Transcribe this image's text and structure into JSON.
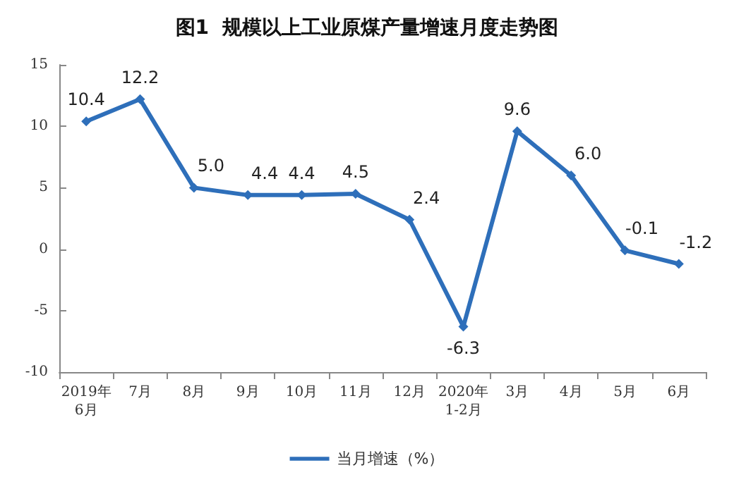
{
  "chart_data": {
    "type": "line",
    "title": "图1  规模以上工业原煤产量增速月度走势图",
    "categories": [
      "2019年\n6月",
      "7月",
      "8月",
      "9月",
      "10月",
      "11月",
      "12月",
      "2020年\n1-2月",
      "3月",
      "4月",
      "5月",
      "6月"
    ],
    "series": [
      {
        "name": "当月增速（%）",
        "color": "#2e6fba",
        "values": [
          10.4,
          12.2,
          5.0,
          4.4,
          4.4,
          4.5,
          2.4,
          -6.3,
          9.6,
          6.0,
          -0.1,
          -1.2
        ],
        "value_labels": [
          "10.4",
          "12.2",
          "5.0",
          "4.4",
          "4.4",
          "4.5",
          "2.4",
          "-6.3",
          "9.6",
          "6.0",
          "-0.1",
          "-1.2"
        ]
      }
    ],
    "ylim": [
      -10,
      15
    ],
    "yticks": [
      -10,
      -5,
      0,
      5,
      10,
      15
    ],
    "grid": false,
    "legend": "bottom",
    "marker": "diamond",
    "line_style": "solid"
  }
}
